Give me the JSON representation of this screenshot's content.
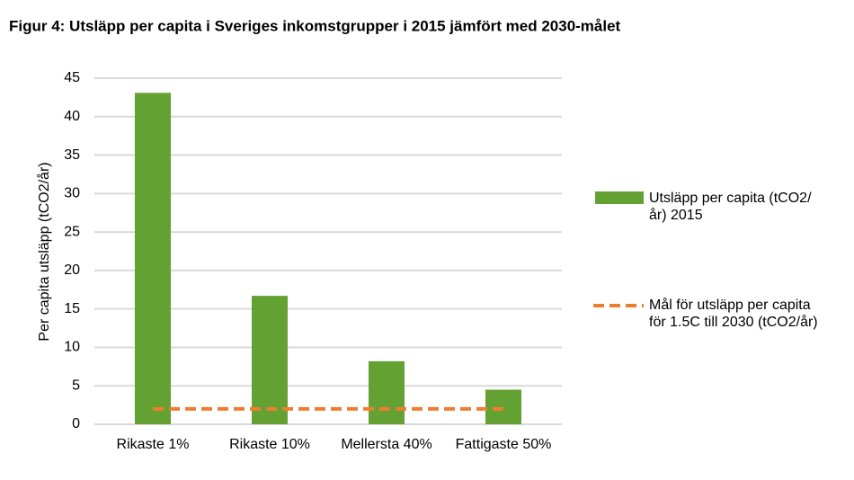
{
  "chart_data": {
    "type": "bar",
    "title": "Figur 4: Utsläpp per capita i Sveriges inkomstgrupper i 2015 jämfört med 2030-målet",
    "y_label": "Per capita utsläpp (tCO2/år)",
    "categories": [
      "Rikaste 1%",
      "Rikaste 10%",
      "Mellersta 40%",
      "Fattigaste 50%"
    ],
    "series": [
      {
        "name": "Utsläpp per capita (tCO2/år) 2015",
        "type": "bar",
        "color": "#63a133",
        "values": [
          43.1,
          16.7,
          8.2,
          4.5
        ]
      },
      {
        "name": "Mål för utsläpp per capita för 1.5C till 2030 (tCO2/år)",
        "type": "line",
        "dashed": true,
        "color": "#ed7d31",
        "values": [
          2.0,
          2.0,
          2.0,
          2.0
        ]
      }
    ],
    "ylim": [
      0,
      45
    ],
    "yticks": [
      0,
      5,
      10,
      15,
      20,
      25,
      30,
      35,
      40,
      45
    ],
    "grid": true
  }
}
